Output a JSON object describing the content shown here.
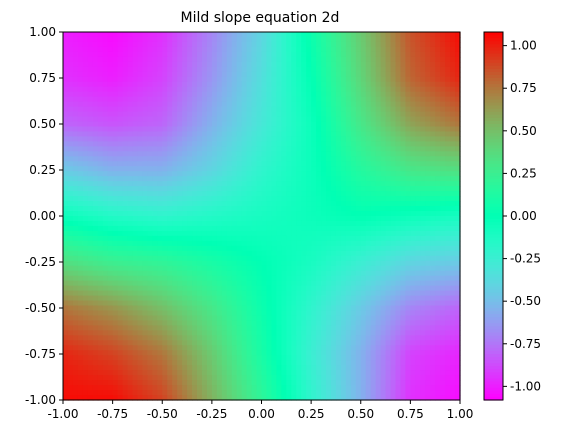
{
  "chart_data": {
    "type": "heatmap",
    "title": "Mild slope equation 2d",
    "xlabel": "",
    "ylabel": "",
    "xlim": [
      -1.0,
      1.0
    ],
    "ylim": [
      -1.0,
      1.0
    ],
    "colormap": "rainbow",
    "clim": [
      -1.08,
      1.08
    ],
    "x_ticks": [
      "-1.00",
      "-0.75",
      "-0.50",
      "-0.25",
      "0.00",
      "0.25",
      "0.50",
      "0.75",
      "1.00"
    ],
    "y_ticks": [
      "-1.00",
      "-0.75",
      "-0.50",
      "-0.25",
      "0.00",
      "0.25",
      "0.50",
      "0.75",
      "1.00"
    ],
    "colorbar_ticks": [
      "-1.00",
      "-0.75",
      "-0.50",
      "-0.25",
      "0.00",
      "0.25",
      "0.50",
      "0.75",
      "1.00"
    ],
    "colorbar_tick_values": [
      -1.0,
      -0.75,
      -0.5,
      -0.25,
      0.0,
      0.25,
      0.5,
      0.75,
      1.0
    ],
    "x": [
      -1.0,
      -0.75,
      -0.5,
      -0.25,
      0.0,
      0.25,
      0.5,
      0.75,
      1.0
    ],
    "y": [
      1.0,
      0.75,
      0.5,
      0.25,
      0.0,
      -0.25,
      -0.5,
      -0.75,
      -1.0
    ],
    "z": [
      [
        -1.0,
        -1.05,
        -0.95,
        -0.7,
        -0.4,
        0.05,
        0.45,
        0.85,
        1.05
      ],
      [
        -0.95,
        -1.0,
        -0.9,
        -0.65,
        -0.35,
        0.0,
        0.4,
        0.8,
        0.98
      ],
      [
        -0.8,
        -0.85,
        -0.8,
        -0.55,
        -0.3,
        -0.05,
        0.3,
        0.6,
        0.75
      ],
      [
        -0.45,
        -0.55,
        -0.55,
        -0.4,
        -0.2,
        -0.05,
        0.15,
        0.3,
        0.35
      ],
      [
        -0.05,
        -0.15,
        -0.2,
        -0.15,
        -0.1,
        -0.05,
        0.0,
        -0.05,
        -0.1
      ],
      [
        0.35,
        0.25,
        0.2,
        0.1,
        0.0,
        -0.1,
        -0.25,
        -0.4,
        -0.45
      ],
      [
        0.75,
        0.65,
        0.5,
        0.3,
        0.05,
        -0.2,
        -0.45,
        -0.7,
        -0.8
      ],
      [
        0.98,
        0.9,
        0.75,
        0.45,
        0.1,
        -0.25,
        -0.55,
        -0.9,
        -0.98
      ],
      [
        1.05,
        1.05,
        0.9,
        0.55,
        0.2,
        -0.2,
        -0.55,
        -0.95,
        -1.05
      ]
    ]
  }
}
